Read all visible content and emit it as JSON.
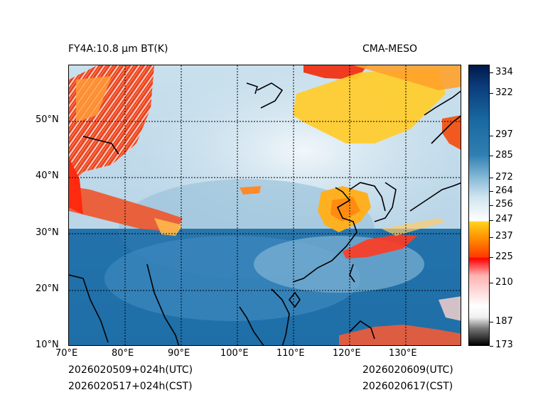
{
  "header": {
    "title_left": "FY4A:10.8 µm BT(K)",
    "title_right": "CMA-MESO"
  },
  "footer": {
    "init_utc": "2026020509+024h(UTC)",
    "init_cst": "2026020517+024h(CST)",
    "valid_utc": "2026020609(UTC)",
    "valid_cst": "2026020617(CST)"
  },
  "axes": {
    "lon_ticks": [
      "70°E",
      "80°E",
      "90°E",
      "100°E",
      "110°E",
      "120°E",
      "130°E"
    ],
    "lat_ticks": [
      "10°N",
      "20°N",
      "30°N",
      "40°N",
      "50°N"
    ]
  },
  "colorbar": {
    "min": 173,
    "max": 339,
    "ticks": [
      "334",
      "322",
      "297",
      "285",
      "272",
      "264",
      "256",
      "247",
      "237",
      "225",
      "210",
      "187",
      "173"
    ],
    "tick_values": [
      334,
      322,
      297,
      285,
      272,
      264,
      256,
      247,
      237,
      225,
      210,
      187,
      173
    ],
    "colors": {
      "black": "#000000",
      "white": "#ffffff",
      "red": "#ff0000",
      "orange": "#ff8c00",
      "yellow": "#ffd21a",
      "light_blue": "#cfe4ef",
      "steel_blue": "#2f7fb2",
      "navy": "#001848"
    }
  },
  "map_colors": {
    "ocean_warm": "#1f6fa8",
    "cloud_pale": "#dceaf2",
    "cloud_mid": "#6aa7cd",
    "high_cloud_yellow": "#ffcf2a",
    "cold_cloud_red": "#f04020",
    "coastline": "#000000"
  }
}
